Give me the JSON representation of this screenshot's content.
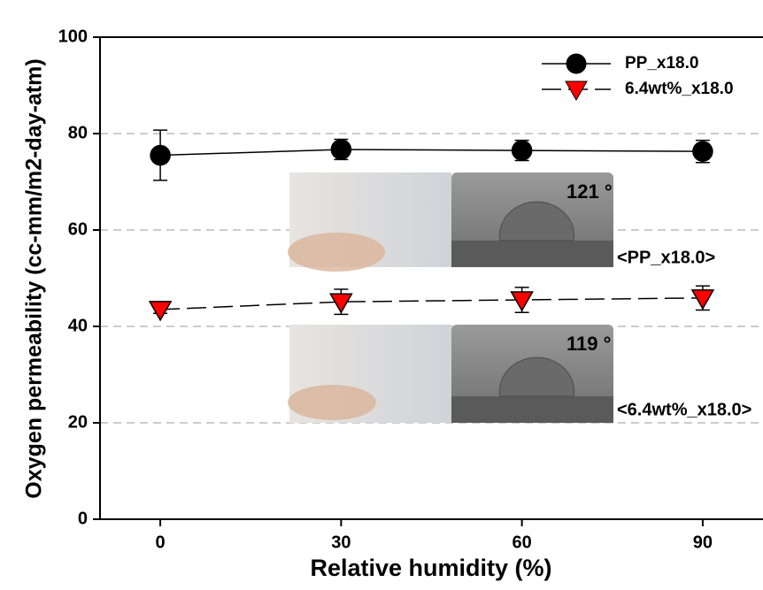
{
  "chart_data": {
    "type": "line",
    "x_label": "Relative humidity (%)",
    "y_label": "Oxygen permeability (cc-mm/m2-day-atm)",
    "x": [
      0,
      30,
      60,
      90
    ],
    "series": [
      {
        "name": "PP_x18.0",
        "color": "#000000",
        "marker": "circle",
        "dash": false,
        "values": [
          75.5,
          76.7,
          76.5,
          76.3
        ],
        "errors": [
          5.2,
          2.1,
          2.1,
          2.3
        ]
      },
      {
        "name": "6.4wt%_x18.0",
        "color": "#ff0000",
        "marker": "triangle-down",
        "dash": true,
        "values": [
          43.5,
          45.1,
          45.5,
          45.9
        ],
        "errors": [
          0.8,
          2.6,
          2.6,
          2.5
        ]
      }
    ],
    "xlim": [
      -10,
      100
    ],
    "xticks": [
      0,
      30,
      60,
      90
    ],
    "ylim": [
      0,
      100
    ],
    "yticks": [
      0,
      20,
      40,
      60,
      80,
      100
    ],
    "grid": true,
    "legend": "upper right",
    "annotations": [
      "121 °",
      "<PP_x18.0>",
      "119 °",
      "<6.4wt%_x18.0>"
    ]
  }
}
